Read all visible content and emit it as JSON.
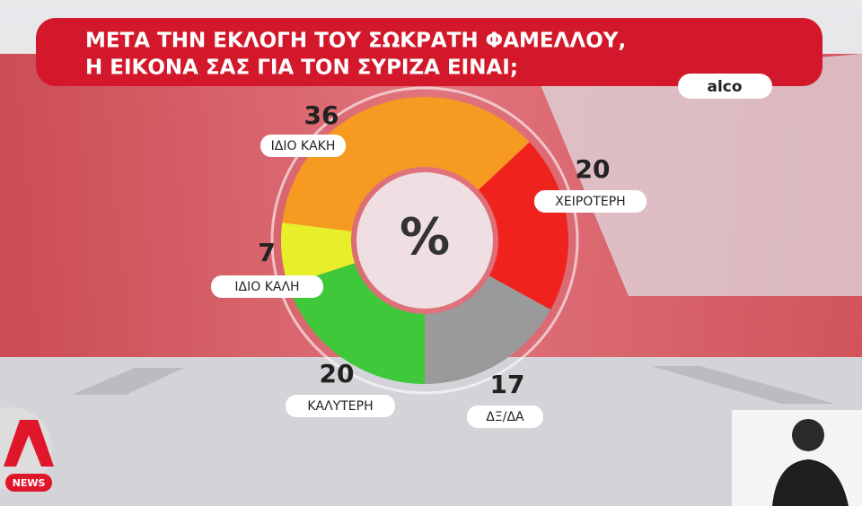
{
  "chart_data": {
    "type": "donut",
    "title": [
      "ΜΕΤΑ ΤΗΝ ΕΚΛΟΓΗ ΤΟΥ ΣΩΚΡΑΤΗ ΦΑΜΕΛΛΟΥ,",
      "Η ΕΙΚΟΝΑ ΣΑΣ ΓΙΑ ΤΟΝ ΣΥΡΙΖΑ ΕΙΝΑΙ;"
    ],
    "source": "alco",
    "center_label": "%",
    "categories": [
      "ΚΑΛΥΤΕΡΗ",
      "ΙΔΙΟ ΚΑΛΗ",
      "ΙΔΙΟ ΚΑΚΗ",
      "ΧΕΙΡΟΤΕΡΗ",
      "ΔΞ/ΔΑ"
    ],
    "values": [
      20,
      7,
      36,
      20,
      17
    ],
    "colors": [
      "#3fc83a",
      "#e6ef2a",
      "#f79a22",
      "#f0221e",
      "#9a9a9a"
    ]
  },
  "logo": "NEWS"
}
